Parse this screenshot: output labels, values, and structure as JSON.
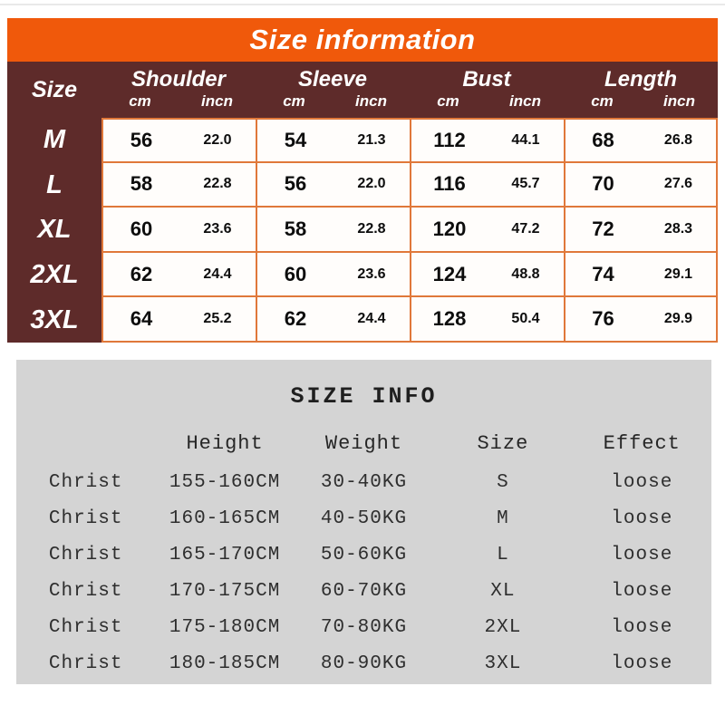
{
  "colors": {
    "title_bar_orange": "#F0590B",
    "header_maroon": "#5E2B2A",
    "cell_border_orange": "#E0783A",
    "panel_gray": "#D4D4D4",
    "text_white": "#FFFFFF",
    "text_dark": "#2E2E2E"
  },
  "chart_data": [
    {
      "type": "table",
      "title": "Size information",
      "row_header": "Size",
      "col_groups": [
        "Shoulder",
        "Sleeve",
        "Bust",
        "Length"
      ],
      "units": [
        "cm",
        "incn"
      ],
      "rows": [
        {
          "size": "M",
          "values": [
            "56",
            "22.0",
            "54",
            "21.3",
            "112",
            "44.1",
            "68",
            "26.8"
          ]
        },
        {
          "size": "L",
          "values": [
            "58",
            "22.8",
            "56",
            "22.0",
            "116",
            "45.7",
            "70",
            "27.6"
          ]
        },
        {
          "size": "XL",
          "values": [
            "60",
            "23.6",
            "58",
            "22.8",
            "120",
            "47.2",
            "72",
            "28.3"
          ]
        },
        {
          "size": "2XL",
          "values": [
            "62",
            "24.4",
            "60",
            "23.6",
            "124",
            "48.8",
            "74",
            "29.1"
          ]
        },
        {
          "size": "3XL",
          "values": [
            "64",
            "25.2",
            "62",
            "24.4",
            "128",
            "50.4",
            "76",
            "29.9"
          ]
        }
      ]
    },
    {
      "type": "table",
      "title": "SIZE INFO",
      "headers": [
        "",
        "Height",
        "Weight",
        "Size",
        "Effect"
      ],
      "rows": [
        [
          "Christ",
          "155-160CM",
          "30-40KG",
          "S",
          "loose"
        ],
        [
          "Christ",
          "160-165CM",
          "40-50KG",
          "M",
          "loose"
        ],
        [
          "Christ",
          "165-170CM",
          "50-60KG",
          "L",
          "loose"
        ],
        [
          "Christ",
          "170-175CM",
          "60-70KG",
          "XL",
          "loose"
        ],
        [
          "Christ",
          "175-180CM",
          "70-80KG",
          "2XL",
          "loose"
        ],
        [
          "Christ",
          "180-185CM",
          "80-90KG",
          "3XL",
          "loose"
        ]
      ]
    }
  ]
}
